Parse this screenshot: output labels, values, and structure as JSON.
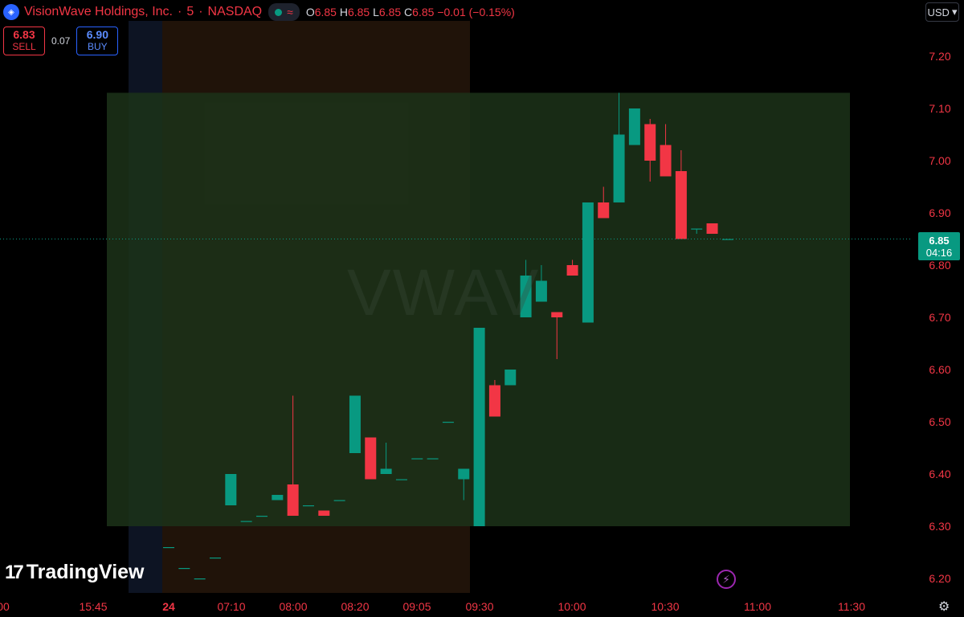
{
  "header": {
    "symbol_name": "VisionWave Holdings, Inc.",
    "interval": "5",
    "exchange": "NASDAQ",
    "ohlc": {
      "o_label": "O",
      "o": "6.85",
      "h_label": "H",
      "h": "6.85",
      "l_label": "L",
      "l": "6.85",
      "c_label": "C",
      "c": "6.85",
      "change": "−0.01 (−0.15%)"
    },
    "currency": "USD"
  },
  "trade": {
    "sell_price": "6.83",
    "sell_label": "SELL",
    "spread": "0.07",
    "buy_price": "6.90",
    "buy_label": "BUY"
  },
  "watermark": "VWAV",
  "brand": "TradingView",
  "last_price_tag": {
    "price": "6.85",
    "countdown": "04:16"
  },
  "colors": {
    "up": "#089981",
    "down": "#f23645",
    "axis_text": "#f23645",
    "highlight_zone": "#1c3319",
    "extended_session": "#201309",
    "premarket_band": "#0d1423"
  },
  "icons": [
    "logo-icon",
    "status-dot-icon",
    "wave-icon",
    "bolt-icon",
    "gear-icon"
  ],
  "chart_data": {
    "type": "candlestick",
    "y_ticks": [
      "7.20",
      "7.10",
      "7.00",
      "6.90",
      "6.80",
      "6.70",
      "6.60",
      "6.50",
      "6.40",
      "6.30",
      "6.20"
    ],
    "ylim": [
      6.17,
      7.26
    ],
    "x_ticks": [
      "00",
      "15:45",
      "24",
      "07:10",
      "08:00",
      "08:20",
      "09:05",
      "09:30",
      "10:00",
      "10:30",
      "11:00",
      "11:30"
    ],
    "last_price": 6.85,
    "highlight_range": [
      6.3,
      7.13
    ],
    "candles": [
      {
        "o": 6.26,
        "h": 6.26,
        "l": 6.26,
        "c": 6.26
      },
      {
        "o": 6.22,
        "h": 6.22,
        "l": 6.22,
        "c": 6.22
      },
      {
        "o": 6.2,
        "h": 6.2,
        "l": 6.2,
        "c": 6.2
      },
      {
        "o": 6.24,
        "h": 6.24,
        "l": 6.24,
        "c": 6.24
      },
      {
        "o": 6.34,
        "h": 6.4,
        "l": 6.34,
        "c": 6.4
      },
      {
        "o": 6.31,
        "h": 6.31,
        "l": 6.31,
        "c": 6.31
      },
      {
        "o": 6.32,
        "h": 6.32,
        "l": 6.32,
        "c": 6.32
      },
      {
        "o": 6.35,
        "h": 6.36,
        "l": 6.35,
        "c": 6.36
      },
      {
        "o": 6.38,
        "h": 6.55,
        "l": 6.32,
        "c": 6.32
      },
      {
        "o": 6.34,
        "h": 6.34,
        "l": 6.34,
        "c": 6.34
      },
      {
        "o": 6.33,
        "h": 6.33,
        "l": 6.32,
        "c": 6.32
      },
      {
        "o": 6.35,
        "h": 6.35,
        "l": 6.35,
        "c": 6.35
      },
      {
        "o": 6.44,
        "h": 6.55,
        "l": 6.44,
        "c": 6.55
      },
      {
        "o": 6.47,
        "h": 6.47,
        "l": 6.39,
        "c": 6.39
      },
      {
        "o": 6.4,
        "h": 6.46,
        "l": 6.4,
        "c": 6.41
      },
      {
        "o": 6.39,
        "h": 6.39,
        "l": 6.39,
        "c": 6.39
      },
      {
        "o": 6.43,
        "h": 6.43,
        "l": 6.43,
        "c": 6.43
      },
      {
        "o": 6.43,
        "h": 6.43,
        "l": 6.43,
        "c": 6.43
      },
      {
        "o": 6.5,
        "h": 6.5,
        "l": 6.5,
        "c": 6.5
      },
      {
        "o": 6.39,
        "h": 6.41,
        "l": 6.35,
        "c": 6.41
      },
      {
        "o": 6.3,
        "h": 6.68,
        "l": 6.3,
        "c": 6.68
      },
      {
        "o": 6.57,
        "h": 6.58,
        "l": 6.51,
        "c": 6.51
      },
      {
        "o": 6.57,
        "h": 6.6,
        "l": 6.57,
        "c": 6.6
      },
      {
        "o": 6.7,
        "h": 6.81,
        "l": 6.7,
        "c": 6.78
      },
      {
        "o": 6.73,
        "h": 6.8,
        "l": 6.73,
        "c": 6.77
      },
      {
        "o": 6.71,
        "h": 6.71,
        "l": 6.62,
        "c": 6.7
      },
      {
        "o": 6.8,
        "h": 6.81,
        "l": 6.78,
        "c": 6.78
      },
      {
        "o": 6.69,
        "h": 6.92,
        "l": 6.69,
        "c": 6.92
      },
      {
        "o": 6.92,
        "h": 6.95,
        "l": 6.89,
        "c": 6.89
      },
      {
        "o": 6.92,
        "h": 7.13,
        "l": 6.92,
        "c": 7.05
      },
      {
        "o": 7.03,
        "h": 7.1,
        "l": 7.03,
        "c": 7.1
      },
      {
        "o": 7.07,
        "h": 7.08,
        "l": 6.96,
        "c": 7.0
      },
      {
        "o": 7.03,
        "h": 7.07,
        "l": 6.97,
        "c": 6.97
      },
      {
        "o": 6.98,
        "h": 7.02,
        "l": 6.85,
        "c": 6.85
      },
      {
        "o": 6.87,
        "h": 6.87,
        "l": 6.86,
        "c": 6.87
      },
      {
        "o": 6.88,
        "h": 6.88,
        "l": 6.86,
        "c": 6.86
      },
      {
        "o": 6.85,
        "h": 6.85,
        "l": 6.85,
        "c": 6.85
      }
    ]
  }
}
